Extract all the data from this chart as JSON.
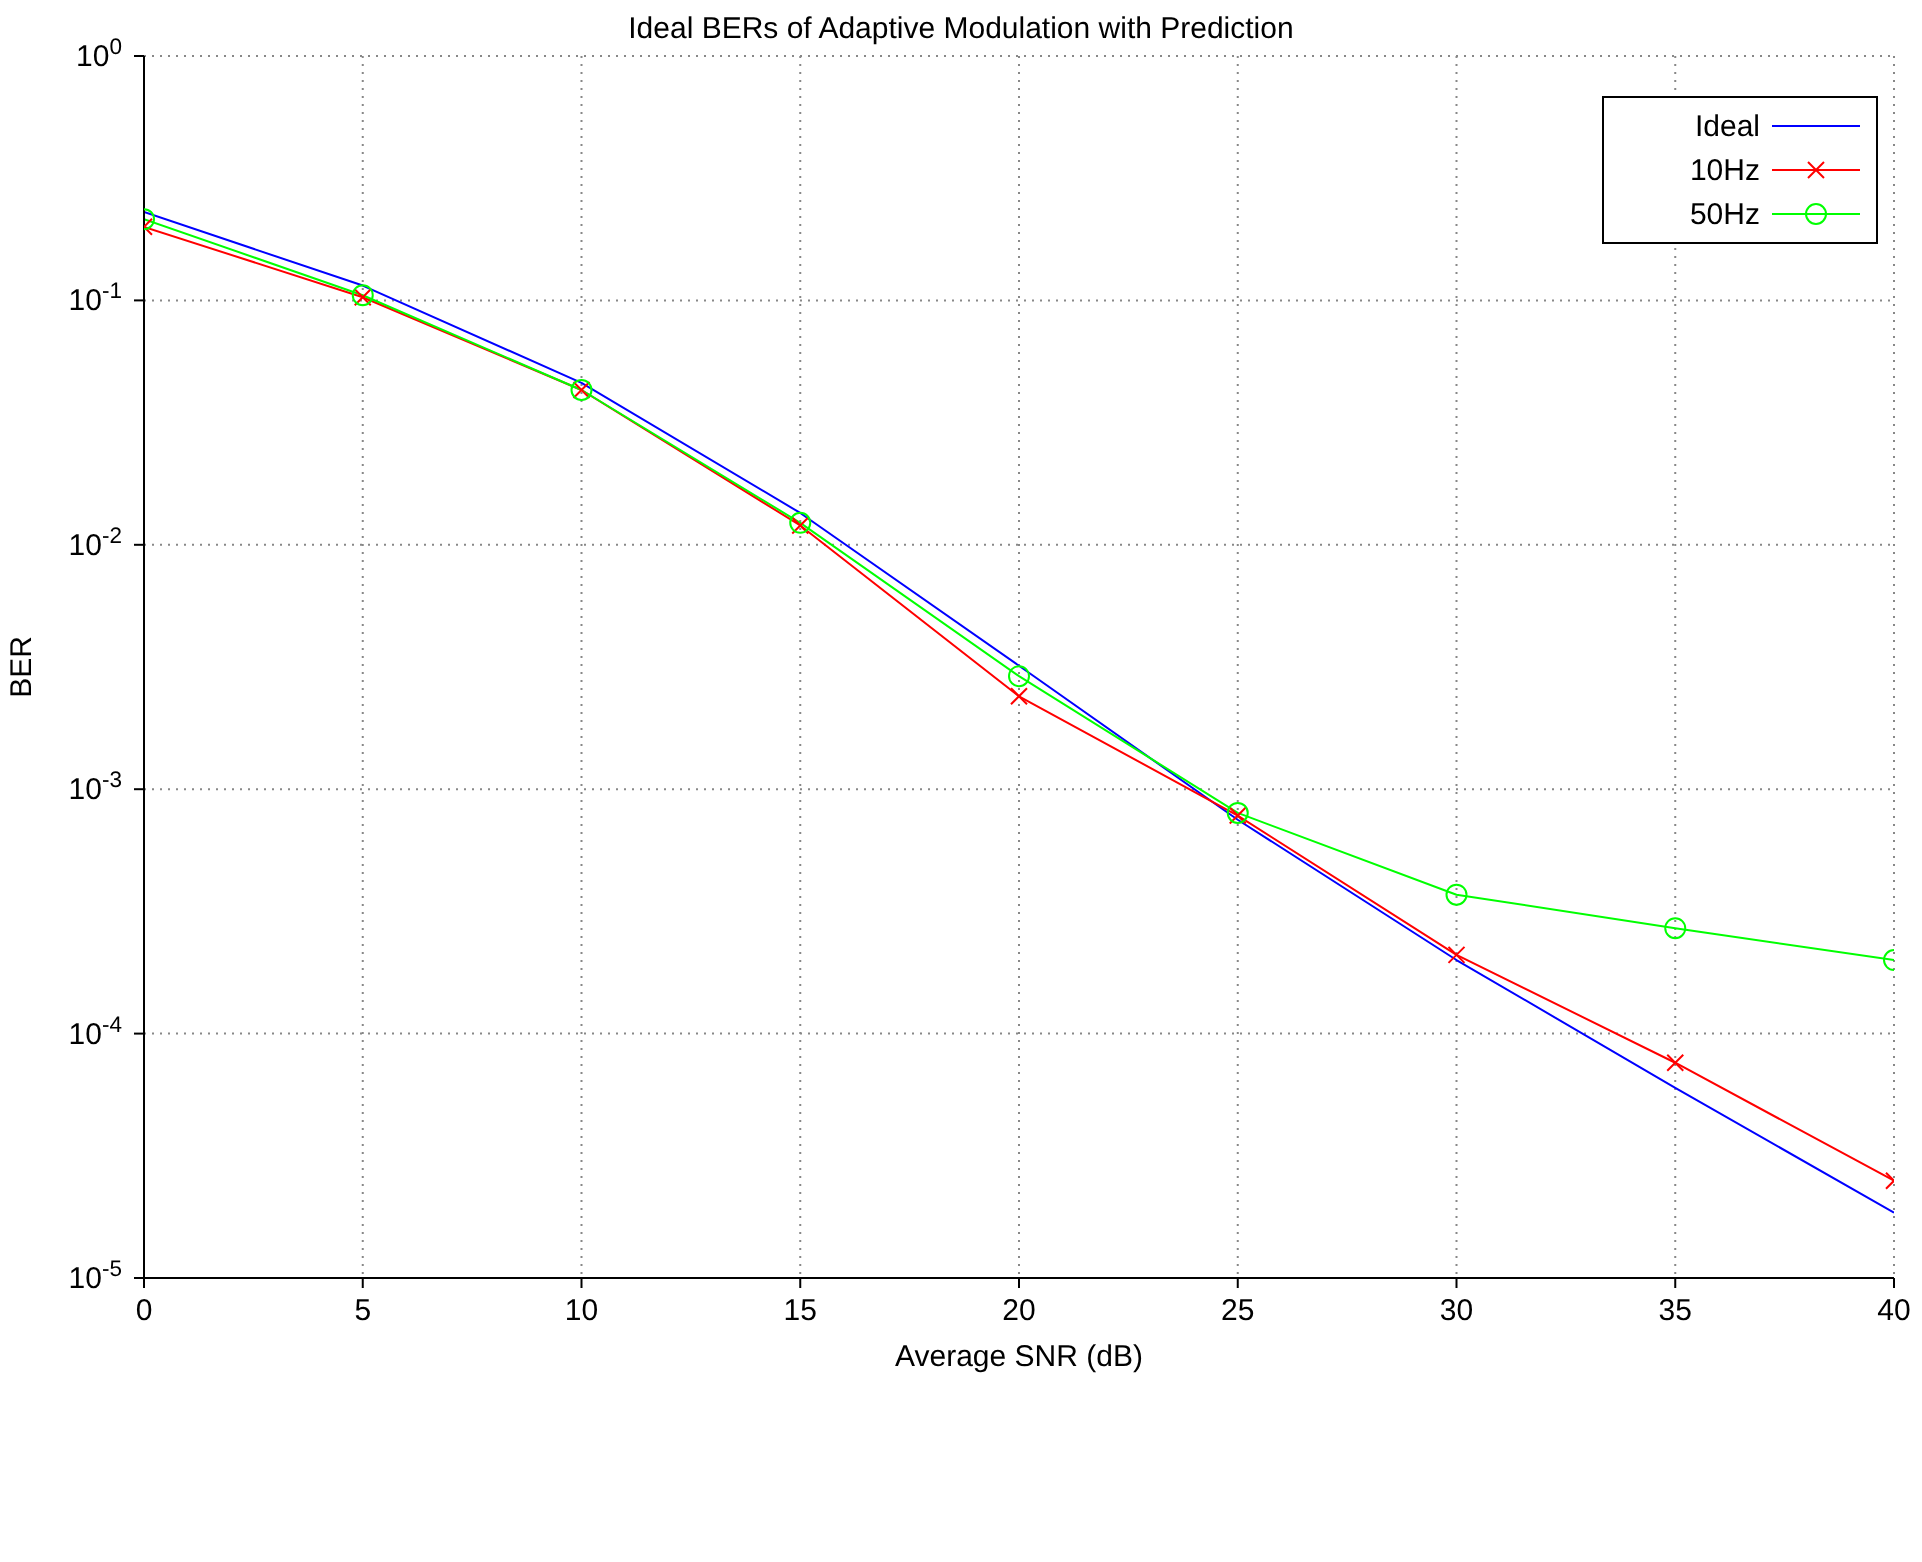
{
  "chart_data": {
    "type": "line",
    "title": "Ideal BERs of Adaptive Modulation with Prediction",
    "xlabel": "Average SNR (dB)",
    "ylabel": "BER",
    "log": "y",
    "grid": true,
    "legend": "top right",
    "x": [
      0,
      5,
      10,
      15,
      20,
      25,
      30,
      35,
      40
    ],
    "xlim": [
      0,
      40
    ],
    "xticks": [
      0,
      5,
      10,
      15,
      20,
      25,
      30,
      35,
      40
    ],
    "ylim": [
      1e-05,
      1
    ],
    "yticks": [
      {
        "value": 1e-05,
        "label": "10$^{-5}$"
      },
      {
        "value": 0.0001,
        "label": "10$^{-4}$"
      },
      {
        "value": 0.001,
        "label": "10$^{-3}$"
      },
      {
        "value": 0.01,
        "label": "10$^{-2}$"
      },
      {
        "value": 0.1,
        "label": "10$^{-1}$"
      },
      {
        "value": 1,
        "label": "10$^{0}$"
      }
    ],
    "series": [
      {
        "name": "Ideal",
        "color": "#0000ff",
        "marker": "none",
        "values": [
          0.23,
          0.115,
          0.046,
          0.0135,
          0.0032,
          0.00075,
          0.0002,
          6e-05,
          1.85e-05
        ]
      },
      {
        "name": "10Hz",
        "color": "#ff0000",
        "marker": "cross",
        "values": [
          0.2,
          0.103,
          0.043,
          0.012,
          0.0024,
          0.00078,
          0.00021,
          7.6e-05,
          2.5e-05
        ]
      },
      {
        "name": "50Hz",
        "color": "#00ff00",
        "marker": "circle",
        "values": [
          0.215,
          0.105,
          0.043,
          0.0123,
          0.0029,
          0.0008,
          0.00037,
          0.00027,
          0.0002
        ]
      }
    ]
  }
}
